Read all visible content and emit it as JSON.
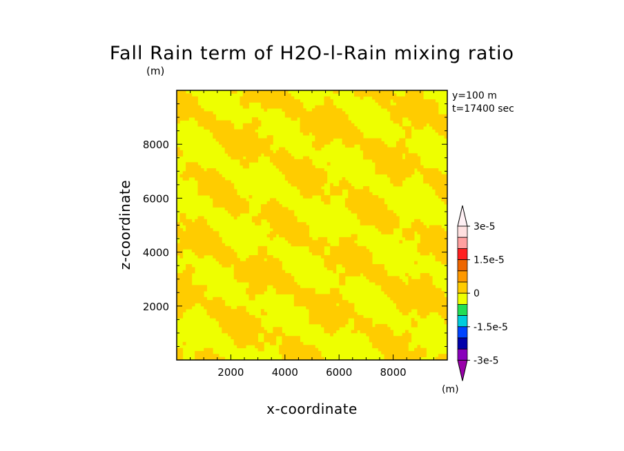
{
  "chart_data": {
    "type": "heatmap",
    "title": "Fall Rain term of H2O-l-Rain mixing ratio",
    "yunit": "(m)",
    "xlabel": "x-coordinate",
    "ylabel": "z-coordinate",
    "xlim": [
      0,
      10000
    ],
    "ylim": [
      0,
      10000
    ],
    "xticks": [
      2000,
      4000,
      6000,
      8000
    ],
    "yticks": [
      2000,
      4000,
      6000,
      8000
    ],
    "annotations": [
      "y=100 m",
      "t=17400 sec"
    ],
    "field_levels": {
      "yellow_level_color": "#eeff00",
      "orange_level_color": "#ffcc00",
      "description": "field alternates between the 0 to 7.5e-6 level and the -7.5e-6 to 0 level"
    },
    "colorbar": {
      "unit": "(m)",
      "labels": [
        "3e-5",
        "1.5e-5",
        "0",
        "-1.5e-5",
        "-3e-5"
      ],
      "colors": [
        "#ffe0e0",
        "#ffa0a0",
        "#ff2020",
        "#ee6600",
        "#ff9900",
        "#ffcc00",
        "#eeff00",
        "#22dd55",
        "#00ccdd",
        "#0044ff",
        "#0000aa",
        "#8800bb"
      ]
    }
  }
}
